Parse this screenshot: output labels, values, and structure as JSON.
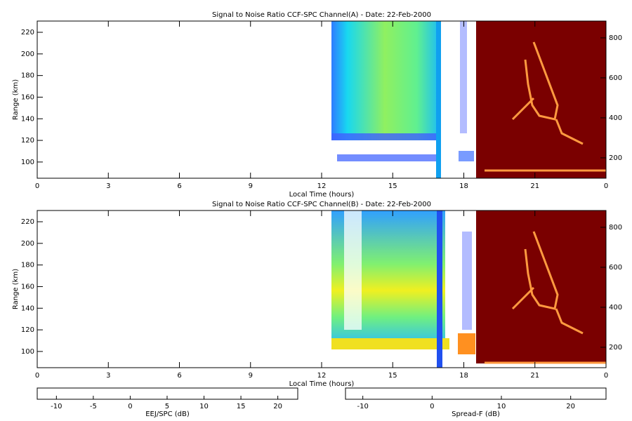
{
  "chart_data": [
    {
      "type": "heatmap",
      "title": "Signal to Noise Ratio CCF-SPC Channel(A) - Date: 22-Feb-2000",
      "xlabel": "Local Time (hours)",
      "ylabel": "Range (km)",
      "xlim": [
        0,
        24
      ],
      "xticks": [
        0,
        3,
        6,
        9,
        12,
        15,
        18,
        21,
        {
          "value": 24,
          "label": "0"
        }
      ],
      "ylim": [
        85,
        230.4
      ],
      "yticks": [
        100,
        120,
        140,
        160,
        180,
        200,
        220
      ],
      "y2lim": [
        98,
        884
      ],
      "y2ticks": [
        200,
        400,
        600,
        800
      ]
    },
    {
      "type": "heatmap",
      "title": "Signal to Noise Ratio CCF-SPC Channel(B) - Date: 22-Feb-2000",
      "xlabel": "Local Time (hours)",
      "ylabel": "Range (km)",
      "xlim": [
        0,
        24
      ],
      "xticks": [
        0,
        3,
        6,
        9,
        12,
        15,
        18,
        21,
        {
          "value": 24,
          "label": "0"
        }
      ],
      "ylim": [
        85,
        230.4
      ],
      "yticks": [
        100,
        120,
        140,
        160,
        180,
        200,
        220
      ],
      "y2lim": [
        98,
        884
      ],
      "y2ticks": [
        200,
        400,
        600,
        800
      ]
    }
  ],
  "colorbars": [
    {
      "label": "EEJ/SPC (dB)",
      "lim": [
        -12.6,
        22.7
      ],
      "ticks": [
        -10,
        -5,
        0,
        5,
        10,
        15,
        20
      ],
      "colors": [
        "#ffffff",
        "#3c3cff",
        "#00e0ff",
        "#70ff80",
        "#ffff00",
        "#ff2000"
      ]
    },
    {
      "label": "Spread-F (dB)",
      "lim": [
        -12.5,
        25.1
      ],
      "ticks": [
        -10,
        0,
        10,
        20
      ],
      "colors": [
        "#6a0000",
        "#c01000",
        "#ff6000",
        "#ffb060",
        "#ffffff"
      ]
    }
  ]
}
